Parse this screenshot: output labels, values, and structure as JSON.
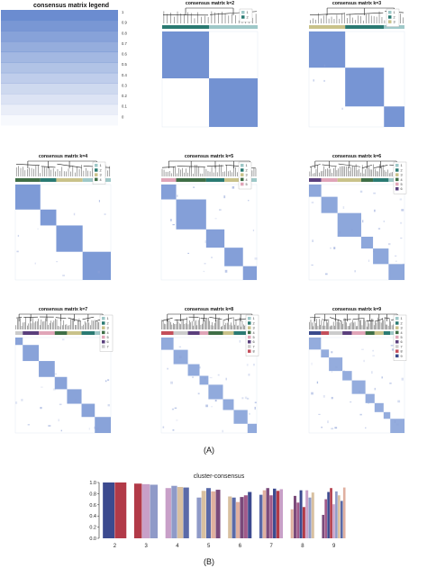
{
  "colors": {
    "consensus": "#6b8cd0",
    "grid": "#8b9fd6",
    "tree": "#222222",
    "cluster_palette": [
      "#9ec8c8",
      "#2a7a72",
      "#c9c28a",
      "#3f6e46",
      "#e0a5b8",
      "#5a3f7c",
      "#cccccc",
      "#c44e5a",
      "#3a4a8c"
    ]
  },
  "legend": {
    "title": "consensus matrix legend",
    "ticks": [
      "1",
      "0.9",
      "0.8",
      "0.7",
      "0.6",
      "0.5",
      "0.4",
      "0.3",
      "0.2",
      "0.1",
      "0"
    ]
  },
  "matrices": [
    {
      "title": "consensus matrix k=2",
      "k": 2,
      "labels": [
        "1",
        "2"
      ],
      "order": [
        1,
        0
      ],
      "noise": 0.0
    },
    {
      "title": "consensus matrix k=3",
      "k": 3,
      "labels": [
        "1",
        "2",
        "3"
      ],
      "order": [
        2,
        1,
        0
      ],
      "noise": 0.02
    },
    {
      "title": "consensus matrix k=4",
      "k": 4,
      "labels": [
        "1",
        "2",
        "3",
        "4"
      ],
      "order": [
        3,
        1,
        2,
        0
      ],
      "noise": 0.05
    },
    {
      "title": "consensus matrix k=5",
      "k": 5,
      "labels": [
        "1",
        "2",
        "3",
        "4",
        "5"
      ],
      "order": [
        4,
        3,
        1,
        2,
        0
      ],
      "noise": 0.08
    },
    {
      "title": "consensus matrix k=6",
      "k": 6,
      "labels": [
        "1",
        "2",
        "3",
        "4",
        "5",
        "6"
      ],
      "order": [
        5,
        4,
        2,
        3,
        1,
        0
      ],
      "noise": 0.12
    },
    {
      "title": "consensus matrix k=7",
      "k": 7,
      "labels": [
        "1",
        "2",
        "3",
        "4",
        "5",
        "6",
        "7"
      ],
      "order": [
        6,
        5,
        4,
        3,
        2,
        1,
        0
      ],
      "noise": 0.1
    },
    {
      "title": "consensus matrix k=8",
      "k": 8,
      "labels": [
        "1",
        "2",
        "3",
        "4",
        "5",
        "6",
        "7",
        "8"
      ],
      "order": [
        7,
        6,
        5,
        4,
        3,
        2,
        1,
        0
      ],
      "noise": 0.14
    },
    {
      "title": "consensus matrix k=9",
      "k": 9,
      "labels": [
        "1",
        "2",
        "3",
        "4",
        "5",
        "6",
        "7",
        "8",
        "9"
      ],
      "order": [
        8,
        7,
        6,
        5,
        4,
        3,
        2,
        1,
        0
      ],
      "noise": 0.15
    }
  ],
  "panel_a_label": "(A)",
  "panel_b_label": "(B)",
  "chart_data": {
    "type": "bar",
    "title": "cluster-consensus",
    "categories": [
      "2",
      "3",
      "4",
      "5",
      "6",
      "7",
      "8",
      "9"
    ],
    "ylim": [
      0,
      1.0
    ],
    "yticks": [
      "0.0",
      "0.2",
      "0.4",
      "0.6",
      "0.8",
      "1.0"
    ],
    "series_values": [
      [
        1.0,
        1.0
      ],
      [
        0.98,
        0.97,
        0.96
      ],
      [
        0.9,
        0.94,
        0.92,
        0.91
      ],
      [
        0.73,
        0.85,
        0.9,
        0.84,
        0.87
      ],
      [
        0.75,
        0.73,
        0.65,
        0.74,
        0.77,
        0.83
      ],
      [
        0.78,
        0.86,
        0.9,
        0.77,
        0.89,
        0.85,
        0.88
      ],
      [
        0.52,
        0.76,
        0.64,
        0.86,
        0.56,
        0.86,
        0.73,
        0.82
      ],
      [
        0.42,
        0.7,
        0.83,
        0.9,
        0.61,
        0.84,
        0.77,
        0.67,
        0.91
      ]
    ],
    "grid": false
  }
}
